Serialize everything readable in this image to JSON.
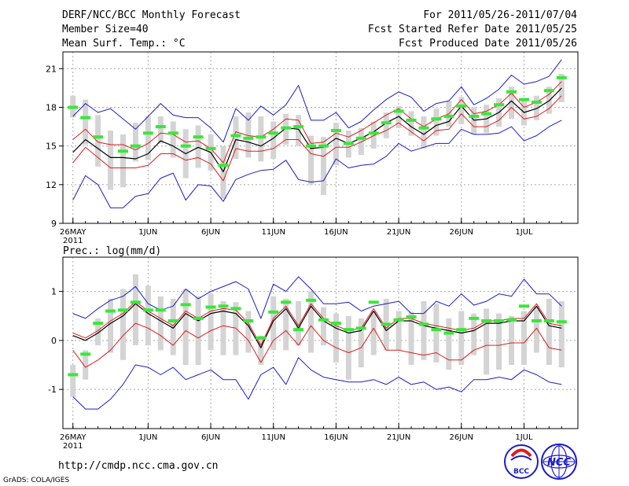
{
  "header": {
    "title": "DERF/NCC/BCC Monthly Forecast",
    "member_size": "Member Size=40",
    "variable_top": "Mean Surf. Temp.: °C",
    "forecast_for": "For 2011/05/26-2011/07/04",
    "fcst_started": "Fcst Started Refer Date 2011/05/25",
    "fcst_produced": "Fcst Produced Date 2011/05/26"
  },
  "footer": {
    "url": "http://cmdp.ncc.cma.gov.cn",
    "grads": "GrADS: COLA/IGES",
    "logo_bcc": "BCC",
    "logo_ncc": "NCC"
  },
  "colors": {
    "box": "#d4d4d4",
    "box_extra": "#c9c9c9",
    "envelope": "#1c1cc8",
    "mean_red": "#dc1e1e",
    "median": "#000000",
    "observed": "#38e838",
    "grid": "#a8a8a8"
  },
  "chart_data": [
    {
      "type": "line",
      "title": "Mean Surf. Temp.: °C",
      "xlabel": "",
      "ylabel": "°C",
      "x_tick_labels": [
        "26MAY",
        "1JUN",
        "6JUN",
        "11JUN",
        "16JUN",
        "21JUN",
        "26JUN",
        "1JUL"
      ],
      "x_tick_days": [
        1,
        7,
        12,
        17,
        22,
        27,
        32,
        37
      ],
      "x_year_label": "2011",
      "ylim": [
        9,
        22.3
      ],
      "yticks": [
        9,
        12,
        15,
        18,
        21
      ],
      "days": [
        1,
        2,
        3,
        4,
        5,
        6,
        7,
        8,
        9,
        10,
        11,
        12,
        13,
        14,
        15,
        16,
        17,
        18,
        19,
        20,
        21,
        22,
        23,
        24,
        25,
        26,
        27,
        28,
        29,
        30,
        31,
        32,
        33,
        34,
        35,
        36,
        37,
        38,
        39,
        40
      ],
      "box_top": [
        18.9,
        18.6,
        17.4,
        16.2,
        15.9,
        16.8,
        17.3,
        17.3,
        16.9,
        16.3,
        16.6,
        15.9,
        15.0,
        17.3,
        17.6,
        17.3,
        16.9,
        17.5,
        17.4,
        15.8,
        15.7,
        16.8,
        16.2,
        16.4,
        16.9,
        17.6,
        18.1,
        17.7,
        17.3,
        17.9,
        18.5,
        18.8,
        18.0,
        18.2,
        18.7,
        19.6,
        18.7,
        18.9,
        19.6,
        20.6
      ],
      "box_bottom": [
        17.2,
        15.1,
        13.4,
        11.6,
        11.8,
        13.8,
        13.9,
        15.2,
        14.1,
        12.5,
        13.3,
        13.1,
        10.9,
        14.0,
        14.1,
        13.8,
        14.0,
        15.1,
        15.0,
        12.0,
        11.2,
        13.5,
        14.1,
        14.3,
        14.8,
        15.6,
        16.4,
        15.8,
        14.8,
        15.8,
        16.5,
        16.7,
        15.9,
        16.0,
        16.5,
        17.1,
        16.6,
        17.0,
        17.5,
        18.4
      ],
      "envelope_max": [
        17.3,
        18.3,
        17.6,
        17.9,
        17.1,
        16.3,
        17.3,
        18.3,
        17.4,
        17.2,
        17.2,
        16.4,
        15.3,
        17.9,
        17.0,
        18.1,
        17.4,
        18.2,
        19.7,
        17.0,
        17.0,
        17.6,
        16.4,
        16.9,
        17.8,
        18.6,
        19.2,
        18.8,
        17.7,
        18.3,
        18.5,
        19.6,
        18.2,
        18.7,
        19.4,
        20.5,
        19.8,
        20.0,
        20.4,
        21.7
      ],
      "envelope_min": [
        10.8,
        12.7,
        12.0,
        10.2,
        10.2,
        11.1,
        11.3,
        12.5,
        12.9,
        10.8,
        12.0,
        11.9,
        10.7,
        12.4,
        12.8,
        13.1,
        13.2,
        13.9,
        12.4,
        12.2,
        12.3,
        14.0,
        13.3,
        13.5,
        13.6,
        14.2,
        15.2,
        14.6,
        14.9,
        15.2,
        15.2,
        16.3,
        15.9,
        15.9,
        16.0,
        16.5,
        15.4,
        15.8,
        16.5,
        17.0
      ],
      "mean_upper": [
        15.5,
        16.3,
        15.3,
        15.1,
        15.1,
        14.7,
        15.2,
        16.0,
        15.9,
        15.3,
        15.4,
        14.8,
        13.7,
        16.1,
        15.8,
        15.7,
        16.3,
        17.1,
        17.0,
        15.2,
        15.3,
        16.0,
        15.7,
        16.2,
        16.8,
        17.4,
        17.9,
        17.1,
        16.5,
        17.1,
        17.5,
        18.6,
        17.5,
        17.7,
        18.2,
        19.1,
        18.0,
        18.4,
        19.0,
        20.0
      ],
      "mean_lower": [
        13.7,
        14.9,
        14.1,
        13.3,
        13.3,
        13.3,
        13.5,
        14.4,
        14.4,
        13.9,
        14.1,
        13.6,
        12.3,
        14.8,
        14.6,
        14.6,
        14.8,
        15.5,
        15.5,
        14.4,
        14.2,
        14.9,
        14.9,
        15.3,
        15.8,
        16.2,
        16.8,
        16.1,
        15.4,
        16.2,
        16.3,
        17.5,
        16.5,
        16.5,
        17.0,
        18.0,
        17.1,
        17.3,
        17.9,
        18.9
      ],
      "median": [
        14.5,
        15.5,
        14.8,
        14.1,
        14.1,
        14.0,
        14.4,
        15.4,
        15.0,
        14.4,
        14.9,
        14.5,
        13.0,
        15.5,
        15.3,
        15.0,
        15.6,
        16.4,
        16.3,
        14.8,
        14.9,
        15.6,
        15.2,
        15.6,
        16.1,
        16.8,
        17.3,
        16.5,
        15.9,
        16.6,
        16.9,
        18.1,
        17.0,
        17.1,
        17.6,
        18.5,
        17.6,
        17.9,
        18.5,
        19.5
      ],
      "observed": [
        18.0,
        17.2,
        15.7,
        null,
        14.6,
        15.0,
        16.0,
        16.5,
        16.0,
        15.0,
        15.7,
        14.8,
        13.5,
        15.8,
        15.6,
        15.7,
        16.0,
        16.4,
        16.5,
        15.0,
        15.0,
        16.2,
        15.2,
        15.6,
        16.0,
        16.8,
        17.7,
        17.0,
        16.4,
        17.1,
        17.3,
        18.1,
        17.3,
        17.5,
        18.2,
        19.2,
        18.6,
        18.4,
        19.3,
        20.3
      ]
    },
    {
      "type": "line",
      "title": "Prec.: log(mm/d)",
      "xlabel": "",
      "ylabel": "log(mm/d)",
      "x_tick_labels": [
        "26MAY",
        "1JUN",
        "6JUN",
        "11JUN",
        "16JUN",
        "21JUN",
        "26JUN",
        "1JUL"
      ],
      "x_tick_days": [
        1,
        7,
        12,
        17,
        22,
        27,
        32,
        37
      ],
      "x_year_label": "2011",
      "ylim": [
        -1.8,
        1.7
      ],
      "yticks": [
        -1,
        0,
        1
      ],
      "days": [
        1,
        2,
        3,
        4,
        5,
        6,
        7,
        8,
        9,
        10,
        11,
        12,
        13,
        14,
        15,
        16,
        17,
        18,
        19,
        20,
        21,
        22,
        23,
        24,
        25,
        26,
        27,
        28,
        29,
        30,
        31,
        32,
        33,
        34,
        35,
        36,
        37,
        38,
        39,
        40
      ],
      "box_top": [
        -0.5,
        -0.2,
        0.45,
        0.85,
        1.05,
        1.35,
        1.12,
        0.9,
        0.85,
        1.05,
        0.9,
        0.95,
        0.8,
        0.78,
        0.6,
        0.1,
        0.9,
        0.85,
        0.8,
        1.0,
        0.68,
        0.55,
        0.5,
        0.45,
        0.6,
        0.85,
        0.6,
        0.58,
        0.8,
        0.75,
        0.45,
        0.6,
        0.55,
        0.65,
        0.55,
        0.5,
        0.6,
        0.7,
        0.85,
        0.8
      ],
      "box_bottom": [
        -1.15,
        -0.8,
        -0.1,
        -0.25,
        -0.4,
        -0.1,
        -0.1,
        -0.2,
        -0.3,
        -0.5,
        -0.5,
        -0.2,
        -0.3,
        -0.3,
        -0.25,
        -0.5,
        -0.2,
        -0.2,
        -0.1,
        -0.25,
        -0.1,
        -0.45,
        -0.8,
        -0.55,
        -0.3,
        -0.2,
        -0.2,
        -0.5,
        -0.4,
        -0.45,
        -0.6,
        -0.5,
        -0.3,
        -0.7,
        -0.6,
        -0.5,
        -0.5,
        -0.25,
        -0.5,
        -0.55
      ],
      "envelope_max": [
        0.55,
        0.45,
        0.65,
        0.82,
        0.9,
        1.1,
        0.75,
        0.62,
        0.7,
        1.05,
        0.85,
        1.0,
        1.1,
        1.2,
        1.05,
        0.45,
        1.15,
        1.0,
        1.3,
        1.05,
        0.75,
        0.75,
        0.78,
        0.6,
        0.7,
        0.75,
        0.8,
        0.55,
        0.55,
        0.8,
        0.7,
        0.95,
        0.72,
        0.8,
        0.95,
        0.9,
        1.25,
        0.95,
        0.95,
        0.7
      ],
      "envelope_min": [
        -1.15,
        -1.4,
        -1.4,
        -1.2,
        -0.9,
        -0.5,
        -0.55,
        -0.7,
        -0.55,
        -0.8,
        -0.7,
        -0.6,
        -0.8,
        -0.8,
        -1.2,
        -0.7,
        -0.55,
        -0.9,
        -0.35,
        -0.6,
        -0.75,
        -0.8,
        -0.85,
        -0.85,
        -0.8,
        -0.9,
        -0.75,
        -0.9,
        -0.85,
        -1.0,
        -0.95,
        -1.05,
        -0.8,
        -0.8,
        -0.75,
        -0.8,
        -0.6,
        -0.7,
        -0.85,
        -0.9
      ],
      "mean_upper": [
        0.15,
        0.05,
        0.2,
        0.4,
        0.55,
        0.8,
        0.6,
        0.45,
        0.3,
        0.6,
        0.45,
        0.6,
        0.65,
        0.62,
        0.35,
        -0.1,
        0.45,
        0.7,
        0.3,
        0.75,
        0.45,
        0.3,
        0.2,
        0.25,
        0.65,
        0.25,
        0.45,
        0.45,
        0.35,
        0.3,
        0.25,
        0.2,
        0.25,
        0.4,
        0.4,
        0.45,
        0.45,
        0.75,
        0.35,
        0.3
      ],
      "mean_lower": [
        -0.2,
        -0.55,
        -0.4,
        -0.2,
        0.1,
        0.35,
        0.25,
        0.1,
        -0.1,
        0.2,
        0.05,
        0.2,
        0.3,
        0.25,
        0.0,
        -0.45,
        0.0,
        0.2,
        -0.1,
        0.3,
        0.0,
        -0.15,
        -0.25,
        -0.15,
        0.25,
        -0.2,
        -0.2,
        -0.25,
        -0.3,
        -0.25,
        -0.4,
        -0.4,
        -0.2,
        -0.1,
        -0.1,
        -0.05,
        -0.05,
        0.25,
        -0.15,
        -0.2
      ],
      "median": [
        0.1,
        0.0,
        0.15,
        0.35,
        0.5,
        0.75,
        0.55,
        0.4,
        0.25,
        0.55,
        0.4,
        0.55,
        0.6,
        0.55,
        0.3,
        -0.15,
        0.4,
        0.65,
        0.25,
        0.7,
        0.4,
        0.25,
        0.15,
        0.2,
        0.6,
        0.2,
        0.4,
        0.4,
        0.3,
        0.25,
        0.2,
        0.15,
        0.2,
        0.35,
        0.35,
        0.4,
        0.4,
        0.7,
        0.3,
        0.25
      ],
      "observed": [
        -0.7,
        -0.28,
        0.35,
        0.6,
        0.62,
        0.78,
        0.62,
        0.62,
        0.4,
        0.73,
        0.45,
        0.68,
        0.7,
        0.65,
        0.4,
        0.05,
        0.58,
        0.78,
        0.22,
        0.82,
        0.42,
        0.35,
        0.22,
        0.25,
        0.78,
        0.33,
        0.42,
        0.48,
        0.33,
        0.22,
        0.15,
        0.22,
        0.45,
        0.4,
        0.4,
        0.42,
        0.7,
        0.4,
        0.4,
        0.38
      ]
    }
  ]
}
